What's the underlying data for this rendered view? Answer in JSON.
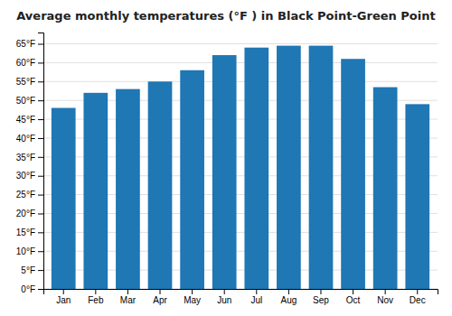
{
  "chart_data": {
    "type": "bar",
    "title": "Average monthly temperatures (°F ) in Black Point-Green Point",
    "categories": [
      "Jan",
      "Feb",
      "Mar",
      "Apr",
      "May",
      "Jun",
      "Jul",
      "Aug",
      "Sep",
      "Oct",
      "Nov",
      "Dec"
    ],
    "values": [
      48,
      52,
      53,
      55,
      58,
      62,
      64,
      64.5,
      64.5,
      61,
      53.5,
      49
    ],
    "ylim": [
      0,
      68
    ],
    "yticks": [
      {
        "value": 0,
        "label": "0°F"
      },
      {
        "value": 5,
        "label": "5°F"
      },
      {
        "value": 10,
        "label": "10°F"
      },
      {
        "value": 15,
        "label": "15°F"
      },
      {
        "value": 20,
        "label": "20°F"
      },
      {
        "value": 25,
        "label": "25°F"
      },
      {
        "value": 30,
        "label": "30°F"
      },
      {
        "value": 35,
        "label": "35°F"
      },
      {
        "value": 40,
        "label": "40°F"
      },
      {
        "value": 45,
        "label": "45°F"
      },
      {
        "value": 50,
        "label": "50°F"
      },
      {
        "value": 55,
        "label": "55°F"
      },
      {
        "value": 60,
        "label": "60°F"
      },
      {
        "value": 65,
        "label": "65°F"
      }
    ],
    "grid": true
  }
}
